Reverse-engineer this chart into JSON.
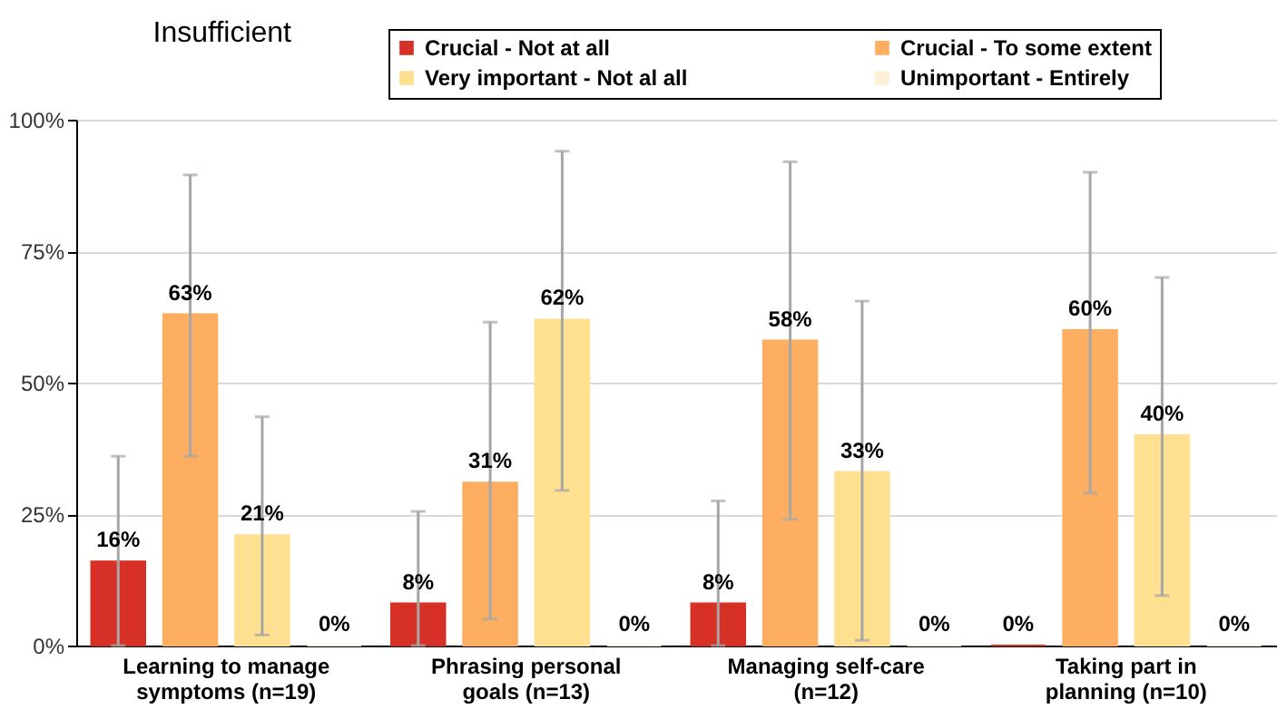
{
  "chart_data": {
    "type": "bar",
    "title": "Insufficient",
    "categories": [
      "Learning to manage symptoms (n=19)",
      "Phrasing personal goals (n=13)",
      "Managing self-care (n=12)",
      "Taking part in planning (n=10)"
    ],
    "series": [
      {
        "name": "Crucial - Not at all",
        "color": "#d73027",
        "values": [
          16,
          8,
          8,
          0
        ],
        "errors": [
          [
            0,
            36
          ],
          [
            0,
            25.5
          ],
          [
            0,
            27.5
          ],
          null
        ],
        "value_labels": [
          "16%",
          "8%",
          "8%",
          "0%"
        ]
      },
      {
        "name": "Crucial - To some extent",
        "color": "#fdae61",
        "values": [
          63,
          31,
          58,
          60
        ],
        "errors": [
          [
            36,
            89.5
          ],
          [
            5,
            61.5
          ],
          [
            24,
            92
          ],
          [
            29,
            90
          ]
        ],
        "value_labels": [
          "63%",
          "31%",
          "58%",
          "60%"
        ]
      },
      {
        "name": "Very important - Not al all",
        "color": "#fee090",
        "values": [
          21,
          62,
          33,
          40
        ],
        "errors": [
          [
            2,
            43.5
          ],
          [
            29.5,
            94
          ],
          [
            1,
            65.5
          ],
          [
            9.5,
            70
          ]
        ],
        "value_labels": [
          "21%",
          "62%",
          "33%",
          "40%"
        ]
      },
      {
        "name": "Unimportant - Entirely",
        "color": "#fdf0d5",
        "values": [
          0,
          0,
          0,
          0
        ],
        "errors": [
          null,
          null,
          null,
          null
        ],
        "value_labels": [
          "0%",
          "0%",
          "0%",
          "0%"
        ]
      }
    ],
    "ylim": [
      0,
      100
    ],
    "yticks": [
      {
        "value": 0,
        "label": "0%"
      },
      {
        "value": 25,
        "label": "25%"
      },
      {
        "value": 50,
        "label": "50%"
      },
      {
        "value": 75,
        "label": "75%"
      },
      {
        "value": 100,
        "label": "100%"
      }
    ],
    "grid": "y",
    "legend": "top right"
  }
}
